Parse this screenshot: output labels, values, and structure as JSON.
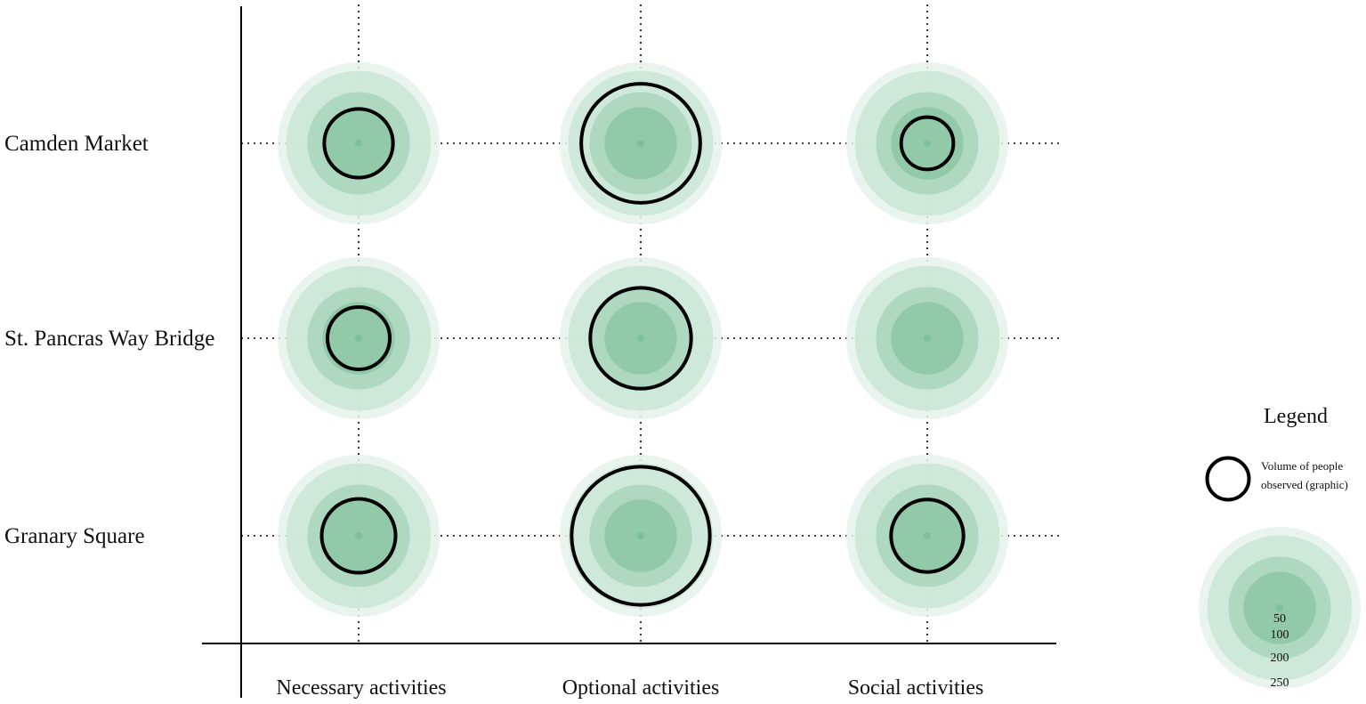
{
  "chart_data": {
    "type": "bubble-matrix",
    "rows": [
      "Camden Market",
      "St. Pancras Way Bridge",
      "Granary Square"
    ],
    "columns": [
      "Necessary activities",
      "Optional activities",
      "Social activities"
    ],
    "values": [
      [
        45,
        135,
        26
      ],
      [
        37,
        97,
        0
      ],
      [
        52,
        182,
        50
      ]
    ],
    "reference_rings": [
      50,
      100,
      200,
      250
    ],
    "legend": {
      "title": "Legend",
      "marker_label_line1": "Volume of people",
      "marker_label_line2": "observed (graphic)",
      "scale_labels": [
        "50",
        "100",
        "200",
        "250"
      ]
    },
    "colors": {
      "ring_250": "#e6f2ec",
      "ring_200": "#c9e5d5",
      "ring_100": "#a8d6bb",
      "ring_50": "#8cc6a4",
      "marker_stroke": "#000000",
      "axis": "#000000",
      "grid": "#000000"
    },
    "grid": "dotted"
  }
}
